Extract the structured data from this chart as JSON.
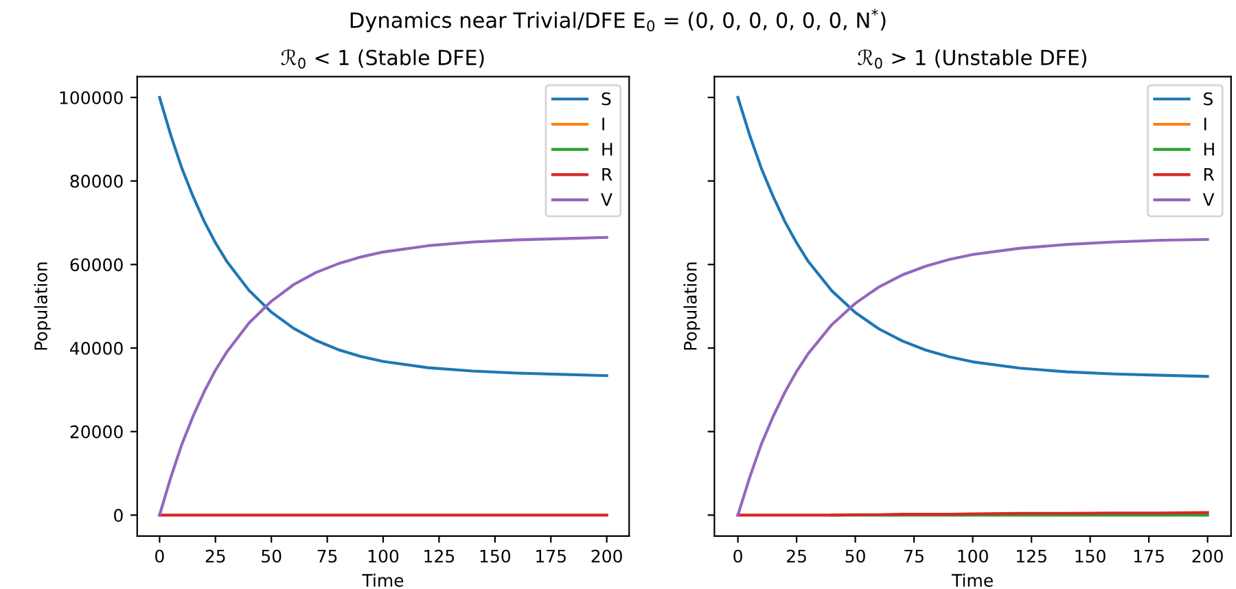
{
  "chart_data": [
    {
      "type": "line",
      "title": "ℛ$_{0}$ < 1 (Stable DFE)",
      "xlabel": "Time",
      "ylabel": "Population",
      "x": [
        0,
        5,
        10,
        15,
        20,
        25,
        30,
        40,
        50,
        60,
        70,
        80,
        90,
        100,
        120,
        140,
        160,
        180,
        200
      ],
      "series": [
        {
          "name": "S",
          "color": "#1f77b4",
          "values": [
            100000,
            91000,
            83000,
            76300,
            70300,
            65200,
            60800,
            53800,
            48600,
            44700,
            41800,
            39600,
            38000,
            36800,
            35300,
            34500,
            34000,
            33700,
            33400
          ]
        },
        {
          "name": "I",
          "color": "#ff7f0e",
          "values": [
            null,
            null,
            null,
            null,
            null,
            null,
            null,
            null,
            null,
            null,
            null,
            null,
            null,
            null,
            null,
            null,
            null,
            null,
            null
          ]
        },
        {
          "name": "H",
          "color": "#2ca02c",
          "values": [
            null,
            null,
            null,
            null,
            null,
            null,
            null,
            null,
            null,
            null,
            null,
            null,
            null,
            null,
            null,
            null,
            null,
            null,
            null
          ]
        },
        {
          "name": "R",
          "color": "#d62728",
          "values": [
            0,
            0,
            0,
            0,
            0,
            0,
            0,
            0,
            0,
            0,
            0,
            0,
            0,
            0,
            0,
            0,
            0,
            0,
            0
          ]
        },
        {
          "name": "V",
          "color": "#9467bd",
          "values": [
            0,
            9000,
            17000,
            23700,
            29600,
            34700,
            39000,
            46000,
            51200,
            55200,
            58100,
            60200,
            61800,
            63000,
            64500,
            65400,
            65900,
            66200,
            66500
          ]
        }
      ],
      "xlim": [
        -10,
        210
      ],
      "xticks": [
        0,
        25,
        50,
        75,
        100,
        125,
        150,
        175,
        200
      ],
      "ylim": [
        -5000,
        105000
      ],
      "yticks": [
        0,
        20000,
        40000,
        60000,
        80000,
        100000
      ],
      "legend": "top right",
      "grid": false
    },
    {
      "type": "line",
      "title": "ℛ$_{0}$ > 1 (Unstable DFE)",
      "xlabel": "Time",
      "ylabel": "Population",
      "x": [
        0,
        5,
        10,
        15,
        20,
        25,
        30,
        40,
        50,
        60,
        70,
        80,
        90,
        100,
        120,
        140,
        160,
        180,
        200
      ],
      "series": [
        {
          "name": "S",
          "color": "#1f77b4",
          "values": [
            100000,
            91000,
            83000,
            76300,
            70300,
            65200,
            60700,
            53700,
            48500,
            44600,
            41700,
            39500,
            37900,
            36700,
            35200,
            34300,
            33800,
            33500,
            33200
          ]
        },
        {
          "name": "I",
          "color": "#ff7f0e",
          "values": [
            null,
            null,
            null,
            null,
            null,
            null,
            null,
            null,
            null,
            null,
            null,
            null,
            null,
            null,
            null,
            null,
            null,
            null,
            null
          ]
        },
        {
          "name": "H",
          "color": "#2ca02c",
          "values": [
            null,
            null,
            null,
            null,
            null,
            null,
            null,
            0,
            0,
            0,
            0,
            0,
            0,
            0,
            0,
            0,
            0,
            0,
            0
          ]
        },
        {
          "name": "R",
          "color": "#d62728",
          "values": [
            0,
            0,
            0,
            0,
            0,
            0,
            0,
            0,
            100,
            100,
            200,
            200,
            200,
            300,
            400,
            400,
            500,
            500,
            600
          ]
        },
        {
          "name": "V",
          "color": "#9467bd",
          "values": [
            0,
            9000,
            17000,
            23600,
            29400,
            34400,
            38700,
            45600,
            50700,
            54600,
            57500,
            59600,
            61200,
            62400,
            63900,
            64800,
            65400,
            65800,
            66000
          ]
        }
      ],
      "xlim": [
        -10,
        210
      ],
      "xticks": [
        0,
        25,
        50,
        75,
        100,
        125,
        150,
        175,
        200
      ],
      "ylim": [
        -5000,
        105000
      ],
      "yticks": [
        0,
        20000,
        40000,
        60000,
        80000,
        100000
      ],
      "tick_labels": "x",
      "legend": "top right",
      "grid": false,
      "annotations": [
        "Dynamics near Trivial/DFE E$_{0}$ = (0, 0, 0, 0, 0, 0, N$^{*}$)"
      ]
    }
  ]
}
